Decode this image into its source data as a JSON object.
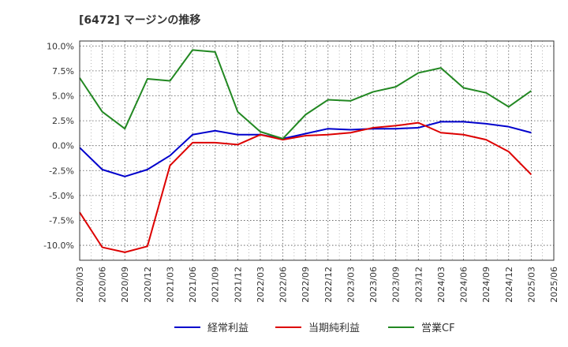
{
  "chart_data": {
    "type": "line",
    "title": "[6472]  マージンの推移",
    "xlabel": "",
    "ylabel": "",
    "x": [
      "2020/03",
      "2020/06",
      "2020/09",
      "2020/12",
      "2021/03",
      "2021/06",
      "2021/09",
      "2021/12",
      "2022/03",
      "2022/06",
      "2022/09",
      "2022/12",
      "2023/03",
      "2023/06",
      "2023/09",
      "2023/12",
      "2024/03",
      "2024/06",
      "2024/09",
      "2024/12",
      "2025/03",
      "2025/06"
    ],
    "yticks": [
      {
        "value": 10.0,
        "label": "10.0%"
      },
      {
        "value": 7.5,
        "label": "7.5%"
      },
      {
        "value": 5.0,
        "label": "5.0%"
      },
      {
        "value": 2.5,
        "label": "2.5%"
      },
      {
        "value": 0.0,
        "label": "0.0%"
      },
      {
        "value": -2.5,
        "label": "-2.5%"
      },
      {
        "value": -5.0,
        "label": "-5.0%"
      },
      {
        "value": -7.5,
        "label": "-7.5%"
      },
      {
        "value": -10.0,
        "label": "-10.0%"
      }
    ],
    "ylim": [
      -11.5,
      10.5
    ],
    "grid": true,
    "legend_position": "bottom",
    "series": [
      {
        "name": "経常利益",
        "color": "#0000cc",
        "values": [
          -0.2,
          -2.4,
          -3.1,
          -2.4,
          -1.0,
          1.1,
          1.5,
          1.1,
          1.1,
          0.7,
          1.2,
          1.7,
          1.6,
          1.7,
          1.7,
          1.8,
          2.4,
          2.4,
          2.2,
          1.9,
          1.3,
          null
        ]
      },
      {
        "name": "当期純利益",
        "color": "#dd0000",
        "values": [
          -6.7,
          -10.2,
          -10.7,
          -10.1,
          -2.0,
          0.3,
          0.3,
          0.1,
          1.1,
          0.6,
          1.0,
          1.1,
          1.3,
          1.8,
          2.0,
          2.3,
          1.3,
          1.1,
          0.6,
          -0.6,
          -2.9,
          null
        ]
      },
      {
        "name": "営業CF",
        "color": "#228822",
        "values": [
          6.8,
          3.4,
          1.7,
          6.7,
          6.5,
          9.6,
          9.4,
          3.4,
          1.4,
          0.7,
          3.1,
          4.6,
          4.5,
          5.4,
          5.9,
          7.3,
          7.8,
          5.8,
          5.3,
          3.9,
          5.5,
          null
        ]
      }
    ]
  }
}
